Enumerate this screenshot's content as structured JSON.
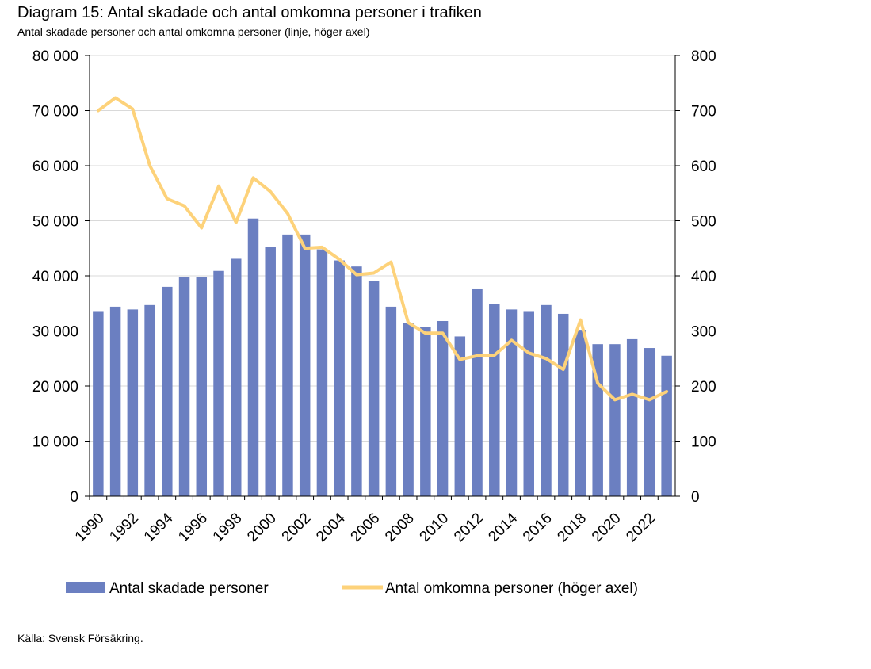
{
  "title": "Diagram 15: Antal skadade och antal omkomna personer i trafiken",
  "subtitle": "Antal skadade personer och antal omkomna personer (linje, höger axel)",
  "source": "Källa: Svensk Försäkring.",
  "colors": {
    "bars": "#6b7fc1",
    "line": "#fdd27a",
    "grid": "#d9d9d9",
    "axis": "#000000"
  },
  "chart_data": {
    "type": "bar+line",
    "categories": [
      1990,
      1991,
      1992,
      1993,
      1994,
      1995,
      1996,
      1997,
      1998,
      1999,
      2000,
      2001,
      2002,
      2003,
      2004,
      2005,
      2006,
      2007,
      2008,
      2009,
      2010,
      2011,
      2012,
      2013,
      2014,
      2015,
      2016,
      2017,
      2018,
      2019,
      2020,
      2021,
      2022,
      2023
    ],
    "x_tick_labels": [
      "1990",
      "1992",
      "1994",
      "1996",
      "1998",
      "2000",
      "2002",
      "2004",
      "2006",
      "2008",
      "2010",
      "2012",
      "2014",
      "2016",
      "2018",
      "2020",
      "2022"
    ],
    "series": [
      {
        "name": "Antal skadade personer",
        "type": "bar",
        "axis": "left",
        "values": [
          33600,
          34400,
          33900,
          34700,
          38000,
          39800,
          39800,
          40900,
          43100,
          50400,
          45200,
          47500,
          47500,
          44800,
          42800,
          41700,
          39000,
          34400,
          31500,
          30700,
          31800,
          29000,
          37700,
          34900,
          33900,
          33600,
          34700,
          33100,
          30200,
          27600,
          27600,
          28500,
          26900,
          25500
        ]
      },
      {
        "name": "Antal omkomna personer (höger axel)",
        "type": "line",
        "axis": "right",
        "values": [
          700,
          723,
          703,
          600,
          540,
          527,
          487,
          563,
          497,
          578,
          553,
          513,
          450,
          452,
          430,
          402,
          405,
          425,
          315,
          296,
          296,
          248,
          255,
          256,
          283,
          260,
          250,
          230,
          320,
          205,
          175,
          185,
          175,
          190
        ]
      }
    ],
    "y_left": {
      "min": 0,
      "max": 80000,
      "ticks": [
        "0",
        "10 000",
        "20 000",
        "30 000",
        "40 000",
        "50 000",
        "60 000",
        "70 000",
        "80 000"
      ]
    },
    "y_right": {
      "min": 0,
      "max": 800,
      "ticks": [
        "0",
        "100",
        "200",
        "300",
        "400",
        "500",
        "600",
        "700",
        "800"
      ]
    },
    "grid": true,
    "legend_position": "bottom"
  }
}
